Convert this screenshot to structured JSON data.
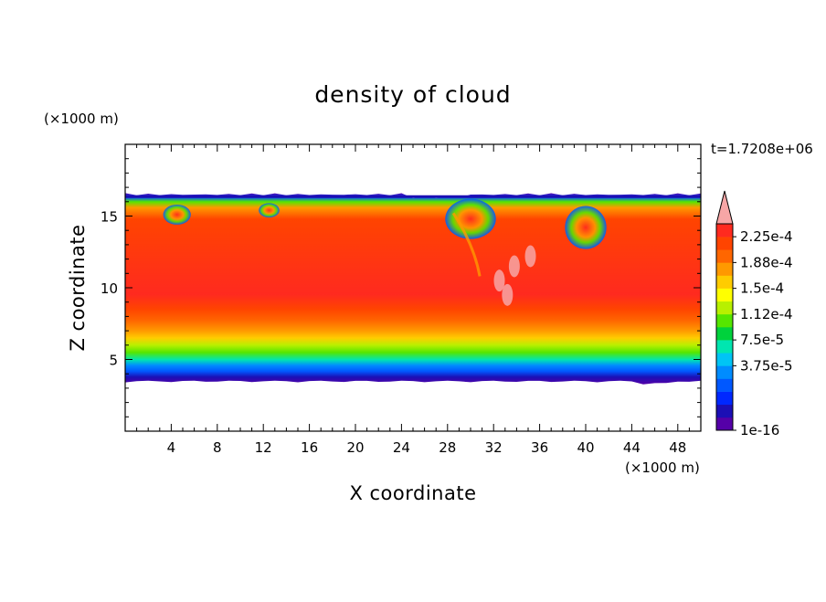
{
  "chart_data": {
    "type": "heatmap",
    "title": "density of cloud",
    "xlabel": "X coordinate",
    "ylabel": "Z coordinate",
    "x_unit": "(×1000 m)",
    "y_unit": "(×1000 m)",
    "time_label": "t=1.7208e+06",
    "xlim": [
      0,
      50
    ],
    "ylim": [
      0,
      20
    ],
    "x_ticks": [
      "4",
      "8",
      "12",
      "16",
      "20",
      "24",
      "28",
      "32",
      "36",
      "40",
      "44",
      "48"
    ],
    "x_tick_values": [
      4,
      8,
      12,
      16,
      20,
      24,
      28,
      32,
      36,
      40,
      44,
      48
    ],
    "y_ticks": [
      "5",
      "10",
      "15"
    ],
    "y_tick_values": [
      5,
      10,
      15
    ],
    "colorbar": {
      "labels": [
        "2.25e-4",
        "1.88e-4",
        "1.5e-4",
        "1.12e-4",
        "7.5e-5",
        "3.75e-5",
        "1e-16"
      ],
      "colors": [
        "#5500a8",
        "#1c0fb5",
        "#0028ff",
        "#0058ff",
        "#008cff",
        "#00c4f5",
        "#00e6b0",
        "#00d23c",
        "#55e600",
        "#b8f000",
        "#ffff00",
        "#ffcc00",
        "#ff9900",
        "#ff6600",
        "#ff4400",
        "#ff2a1f"
      ],
      "extend_color": "#f7a6a6"
    },
    "cloud_region": {
      "z_bottom": 3.4,
      "z_top": 16.6,
      "level_profile": [
        {
          "z": 3.4,
          "level": 0
        },
        {
          "z": 3.9,
          "level": 1
        },
        {
          "z": 4.3,
          "level": 3
        },
        {
          "z": 4.7,
          "level": 4
        },
        {
          "z": 5.1,
          "level": 6
        },
        {
          "z": 5.6,
          "level": 8
        },
        {
          "z": 6.1,
          "level": 9
        },
        {
          "z": 6.6,
          "level": 11
        },
        {
          "z": 7.1,
          "level": 12
        },
        {
          "z": 7.8,
          "level": 13
        },
        {
          "z": 8.6,
          "level": 14
        },
        {
          "z": 9.6,
          "level": 15
        },
        {
          "z": 14.8,
          "level": 14
        },
        {
          "z": 15.6,
          "level": 12
        },
        {
          "z": 16.0,
          "level": 8
        },
        {
          "z": 16.3,
          "level": 3
        },
        {
          "z": 16.6,
          "level": 0
        }
      ]
    }
  }
}
